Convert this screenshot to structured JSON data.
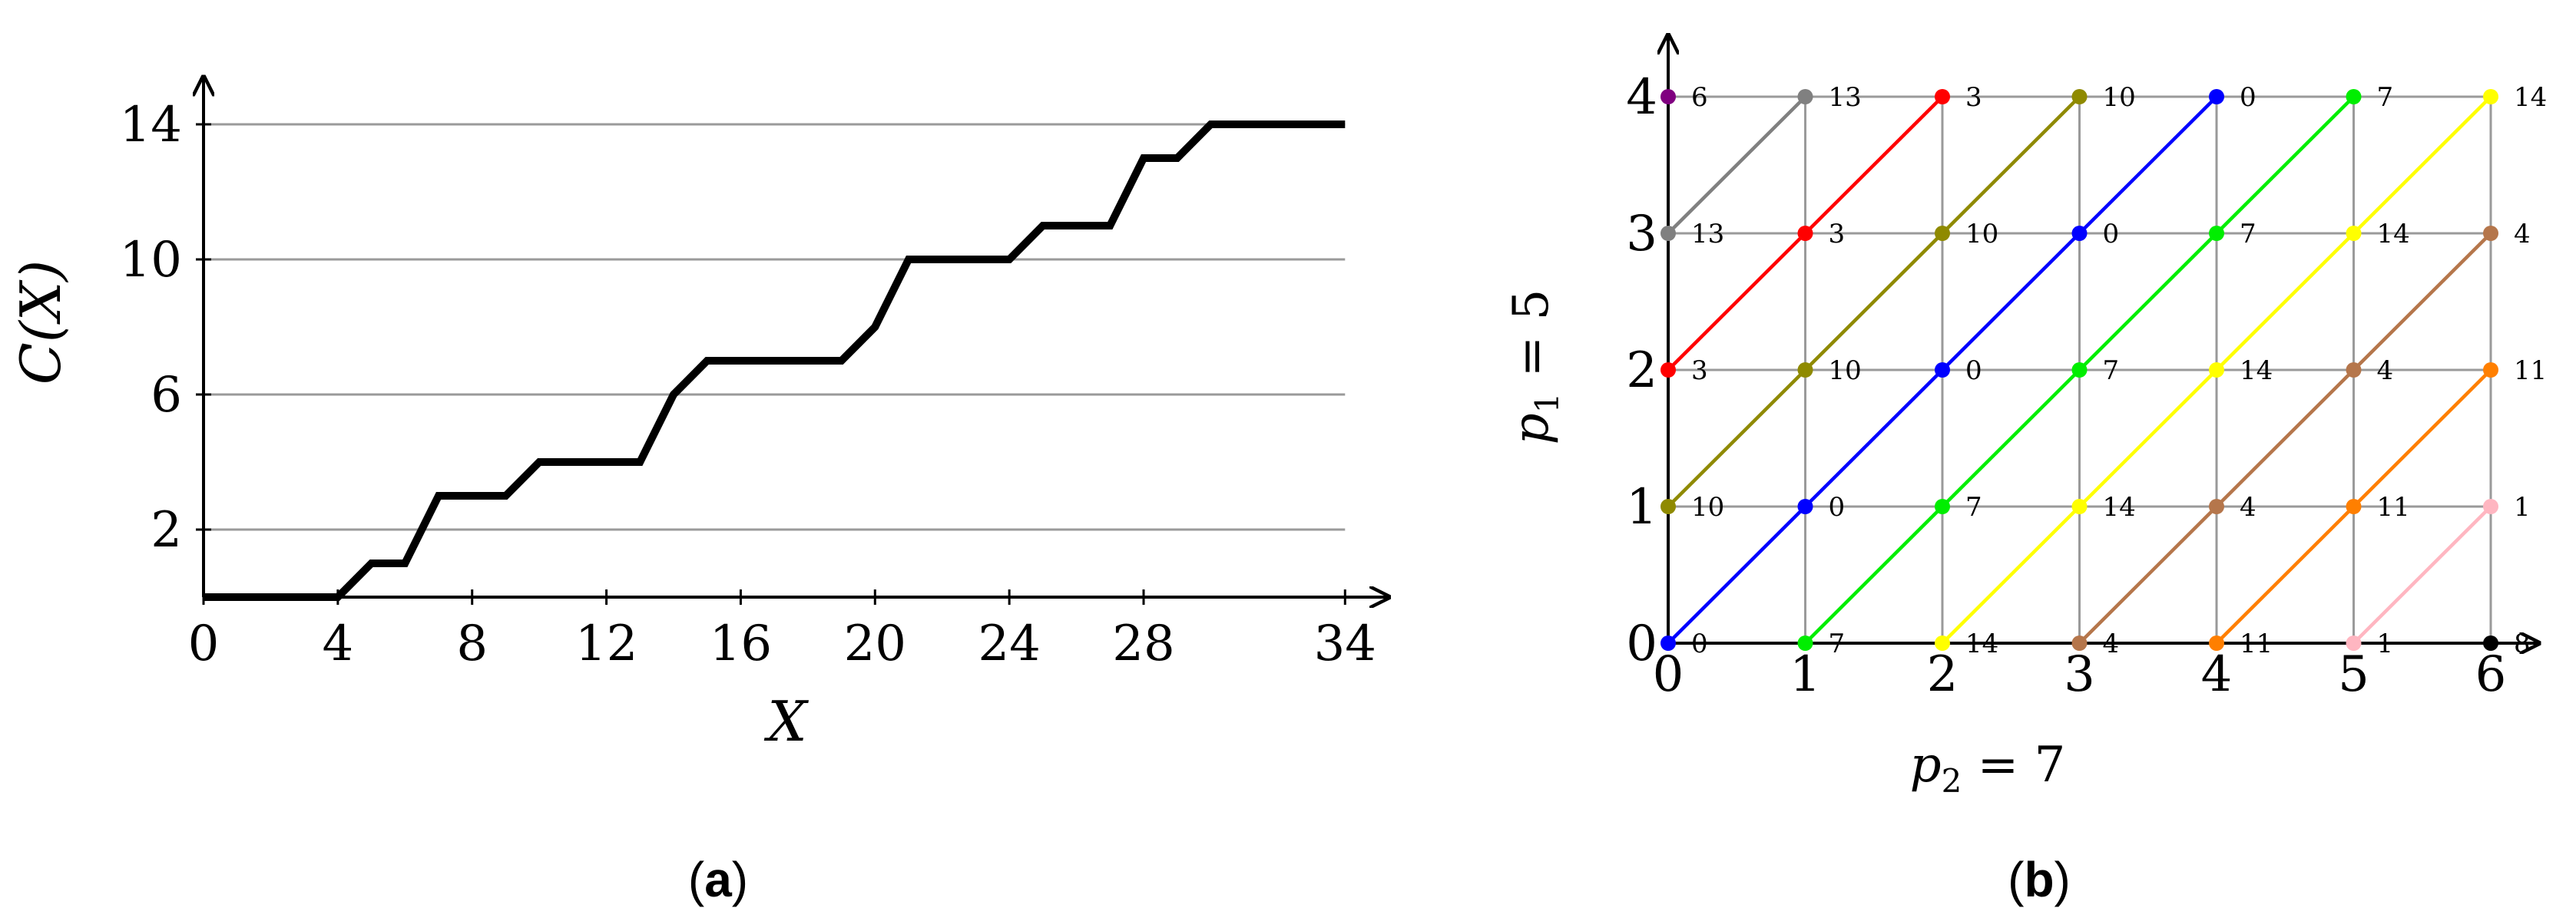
{
  "chart_data": [
    {
      "type": "line",
      "panel": "a",
      "caption": {
        "open": "(",
        "letter": "a",
        "close": ")"
      },
      "xlabel": "X",
      "ylabel": "C(X)",
      "xlim": [
        0,
        35
      ],
      "ylim": [
        0,
        15
      ],
      "xticks": [
        0,
        4,
        8,
        12,
        16,
        20,
        24,
        28,
        34
      ],
      "yticks": [
        2,
        6,
        10,
        14
      ],
      "grid": "horizontal",
      "series": [
        {
          "color": "#000000",
          "x": [
            0,
            1,
            2,
            3,
            4,
            5,
            6,
            7,
            8,
            9,
            10,
            11,
            12,
            13,
            14,
            15,
            16,
            17,
            18,
            19,
            20,
            21,
            22,
            23,
            24,
            25,
            26,
            27,
            28,
            29,
            30,
            31,
            32,
            33,
            34
          ],
          "y": [
            0,
            0,
            0,
            0,
            0,
            1,
            1,
            3,
            3,
            3,
            4,
            4,
            4,
            4,
            6,
            7,
            7,
            7,
            7,
            7,
            8,
            10,
            10,
            10,
            10,
            11,
            11,
            11,
            13,
            13,
            14,
            14,
            14,
            14,
            14
          ]
        }
      ]
    },
    {
      "type": "scatter",
      "panel": "b",
      "caption": {
        "open": "(",
        "letter": "b",
        "close": ")"
      },
      "xlabel": {
        "p": "p",
        "sub": "2",
        "rest": " = 7"
      },
      "ylabel": {
        "p": "p",
        "sub": "1",
        "rest": " = 5"
      },
      "xticks": [
        0,
        1,
        2,
        3,
        4,
        5,
        6
      ],
      "yticks": [
        0,
        1,
        2,
        3,
        4
      ],
      "grid": "both",
      "values": [
        [
          0,
          7,
          14,
          4,
          11,
          1,
          8
        ],
        [
          10,
          0,
          7,
          14,
          4,
          11,
          1
        ],
        [
          3,
          10,
          0,
          7,
          14,
          4,
          11
        ],
        [
          13,
          3,
          10,
          0,
          7,
          14,
          4
        ],
        [
          6,
          13,
          3,
          10,
          0,
          7,
          14
        ]
      ],
      "value_colors": {
        "0": "#0000ff",
        "1": "#ffb6c1",
        "3": "#ff0000",
        "4": "#b5764b",
        "6": "#800080",
        "7": "#00ee00",
        "8": "#000000",
        "10": "#8f8a00",
        "11": "#ff7f00",
        "13": "#808080",
        "14": "#ffff00"
      }
    }
  ]
}
